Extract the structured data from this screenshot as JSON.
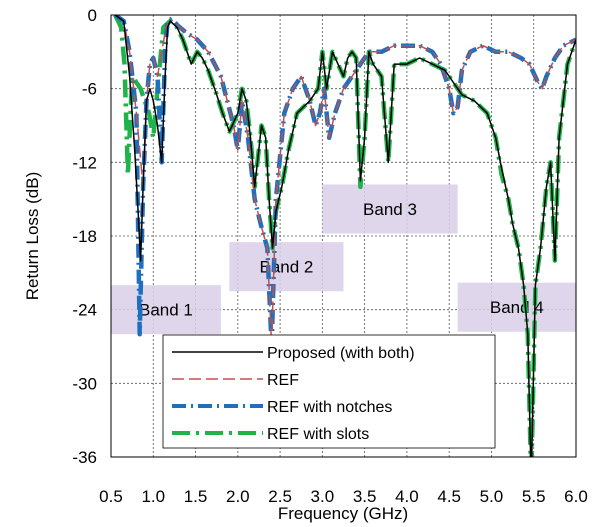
{
  "chart_data": {
    "type": "line",
    "xlabel": "Frequency (GHz)",
    "ylabel": "Return Loss (dB)",
    "xlim": [
      0.5,
      6.0
    ],
    "ylim": [
      -36,
      0
    ],
    "xticks": [
      "0.5",
      "1.0",
      "1.5",
      "2.0",
      "2.5",
      "3.0",
      "3.5",
      "4.0",
      "4.5",
      "5.0",
      "5.5",
      "6.0"
    ],
    "yticks": [
      "0",
      "-6",
      "-12",
      "-18",
      "-24",
      "-30",
      "-36"
    ],
    "grid": true,
    "legend_position": "bottom-center",
    "bands": [
      {
        "label": "Band 1",
        "x_range": [
          0.5,
          1.8
        ],
        "y_range": [
          -26,
          -22
        ]
      },
      {
        "label": "Band 2",
        "x_range": [
          1.9,
          3.25
        ],
        "y_range": [
          -22.5,
          -18.5
        ]
      },
      {
        "label": "Band 3",
        "x_range": [
          3.0,
          4.6
        ],
        "y_range": [
          -17.8,
          -13.8
        ]
      },
      {
        "label": "Band 4",
        "x_range": [
          4.6,
          6.0
        ],
        "y_range": [
          -25.8,
          -21.8
        ]
      }
    ],
    "series": [
      {
        "name": "Proposed (with both)",
        "color": "#000000",
        "dash": "solid",
        "x": [
          0.55,
          0.65,
          0.72,
          0.78,
          0.82,
          0.85,
          0.88,
          0.92,
          0.96,
          1.0,
          1.05,
          1.1,
          1.14,
          1.17,
          1.2,
          1.28,
          1.35,
          1.45,
          1.52,
          1.58,
          1.65,
          1.75,
          1.82,
          1.9,
          2.0,
          2.05,
          2.1,
          2.15,
          2.2,
          2.28,
          2.33,
          2.37,
          2.41,
          2.45,
          2.52,
          2.6,
          2.7,
          2.85,
          2.95,
          3.0,
          3.05,
          3.12,
          3.25,
          3.3,
          3.35,
          3.4,
          3.45,
          3.5,
          3.55,
          3.6,
          3.7,
          3.78,
          3.85,
          4.0,
          4.15,
          4.3,
          4.45,
          4.55,
          4.65,
          4.8,
          4.95,
          5.05,
          5.12,
          5.2,
          5.25,
          5.32,
          5.38,
          5.43,
          5.47,
          5.52,
          5.58,
          5.65,
          5.7,
          5.75,
          5.8,
          5.9,
          6.0
        ],
        "y": [
          0,
          -0.5,
          -5,
          -11,
          -16,
          -20,
          -14,
          -7,
          -6,
          -7,
          -9,
          -12,
          -5,
          -1,
          -0.5,
          -1,
          -2,
          -4,
          -3,
          -3.5,
          -4.5,
          -6.5,
          -8,
          -9.5,
          -8,
          -6,
          -7,
          -10,
          -14,
          -9,
          -10,
          -15,
          -19,
          -16,
          -14,
          -11,
          -8,
          -7,
          -6,
          -3,
          -6,
          -3,
          -5,
          -3.5,
          -3,
          -3.5,
          -13.5,
          -10,
          -3,
          -4,
          -5,
          -12,
          -4,
          -4,
          -3.5,
          -4,
          -4.5,
          -5.5,
          -6.5,
          -7,
          -8,
          -10,
          -12.5,
          -15,
          -17,
          -19,
          -22,
          -26,
          -38,
          -22,
          -19,
          -14,
          -12,
          -20,
          -10,
          -4,
          -2
        ]
      },
      {
        "name": "REF",
        "color": "#c0504d",
        "dash": "long-dash",
        "x": [
          0.55,
          0.65,
          0.72,
          0.8,
          0.88,
          0.92,
          0.96,
          1.0,
          1.05,
          1.15,
          1.2,
          1.28,
          1.4,
          1.52,
          1.65,
          1.8,
          1.95,
          2.0,
          2.05,
          2.12,
          2.2,
          2.27,
          2.35,
          2.4,
          2.45,
          2.55,
          2.65,
          2.75,
          2.85,
          2.92,
          2.97,
          3.02,
          3.08,
          3.15,
          3.25,
          3.35,
          3.45,
          3.55,
          3.7,
          3.85,
          4.0,
          4.15,
          4.3,
          4.4,
          4.5,
          4.55,
          4.6,
          4.65,
          4.75,
          4.9,
          5.05,
          5.2,
          5.35,
          5.45,
          5.55,
          5.6,
          5.65,
          5.75,
          5.85,
          6.0
        ],
        "y": [
          0,
          -0.5,
          -3,
          -8,
          -14,
          -7,
          -4,
          -3.5,
          -5,
          -1,
          -0.5,
          -0.8,
          -1.5,
          -2,
          -3,
          -5,
          -9,
          -11,
          -7,
          -10,
          -15,
          -17,
          -19,
          -27,
          -15,
          -8,
          -6,
          -5,
          -7,
          -9,
          -8,
          -6,
          -10,
          -8,
          -6,
          -5,
          -4,
          -3,
          -3,
          -2.5,
          -2.5,
          -2.5,
          -3,
          -4,
          -6,
          -8,
          -7.5,
          -4.5,
          -3,
          -2.5,
          -3,
          -3,
          -3.5,
          -4,
          -5.5,
          -6,
          -5,
          -3.5,
          -2.5,
          -2
        ]
      },
      {
        "name": "REF with notches",
        "color": "#1f6fbf",
        "dash": "dash-dot",
        "x": [
          0.55,
          0.65,
          0.72,
          0.8,
          0.84,
          0.88,
          0.92,
          0.96,
          1.0,
          1.05,
          1.1,
          1.14,
          1.17,
          1.22,
          1.28,
          1.4,
          1.52,
          1.65,
          1.8,
          1.95,
          2.0,
          2.05,
          2.12,
          2.2,
          2.27,
          2.35,
          2.4,
          2.45,
          2.55,
          2.65,
          2.75,
          2.85,
          2.92,
          2.97,
          3.02,
          3.08,
          3.15,
          3.25,
          3.35,
          3.45,
          3.55,
          3.7,
          3.85,
          4.0,
          4.15,
          4.3,
          4.4,
          4.5,
          4.55,
          4.6,
          4.65,
          4.75,
          4.9,
          5.05,
          5.2,
          5.35,
          5.45,
          5.55,
          5.6,
          5.65,
          5.75,
          5.85,
          6.0
        ],
        "y": [
          0,
          -0.5,
          -3,
          -8,
          -26,
          -14,
          -7,
          -4,
          -3.5,
          -5,
          -12,
          -3,
          -0.5,
          -0.3,
          -0.8,
          -1.5,
          -2,
          -3,
          -5,
          -9,
          -11,
          -7,
          -10,
          -15,
          -17,
          -19,
          -27,
          -15,
          -8,
          -6,
          -5,
          -7,
          -9,
          -8,
          -6,
          -10,
          -8,
          -6,
          -5,
          -4,
          -3,
          -3,
          -2.5,
          -2.5,
          -2.5,
          -3,
          -4,
          -6,
          -8,
          -7.5,
          -4.5,
          -3,
          -2.5,
          -3,
          -3,
          -3.5,
          -4,
          -5.5,
          -6,
          -5,
          -3.5,
          -2.5,
          -2
        ]
      },
      {
        "name": "REF with slots",
        "color": "#1fb34a",
        "dash": "long-dash-dot",
        "x": [
          0.55,
          0.62,
          0.66,
          0.7,
          0.75,
          0.8,
          0.85,
          0.9,
          0.95,
          1.0,
          1.05,
          1.12,
          1.2,
          1.28,
          1.35,
          1.45,
          1.52,
          1.58,
          1.65,
          1.75,
          1.82,
          1.9,
          2.0,
          2.05,
          2.1,
          2.15,
          2.2,
          2.28,
          2.33,
          2.37,
          2.41,
          2.45,
          2.52,
          2.6,
          2.7,
          2.85,
          2.95,
          3.0,
          3.05,
          3.12,
          3.25,
          3.3,
          3.35,
          3.4,
          3.45,
          3.5,
          3.55,
          3.6,
          3.7,
          3.78,
          3.85,
          4.0,
          4.15,
          4.3,
          4.45,
          4.55,
          4.65,
          4.8,
          4.95,
          5.05,
          5.12,
          5.2,
          5.25,
          5.32,
          5.38,
          5.43,
          5.47,
          5.52,
          5.58,
          5.65,
          5.7,
          5.75,
          5.8,
          5.9,
          6.0
        ],
        "y": [
          0,
          -1,
          -4,
          -13,
          -5,
          -5.5,
          -6,
          -7,
          -8,
          -10,
          -6,
          -1,
          -0.5,
          -1,
          -2,
          -4,
          -3,
          -3.5,
          -4.5,
          -6.5,
          -8,
          -9.5,
          -8,
          -6,
          -7,
          -10,
          -14,
          -9,
          -10,
          -15,
          -19,
          -16,
          -14,
          -11,
          -8,
          -7,
          -6,
          -3,
          -6,
          -3,
          -5,
          -3.5,
          -3,
          -3.5,
          -14,
          -10,
          -3,
          -4,
          -5,
          -12,
          -4,
          -4,
          -3.5,
          -4,
          -4.5,
          -5.5,
          -6.5,
          -7,
          -8,
          -10,
          -13,
          -15,
          -17,
          -19,
          -22,
          -26,
          -38,
          -22,
          -19,
          -14,
          -12,
          -20,
          -10,
          -4,
          -2
        ]
      }
    ]
  }
}
